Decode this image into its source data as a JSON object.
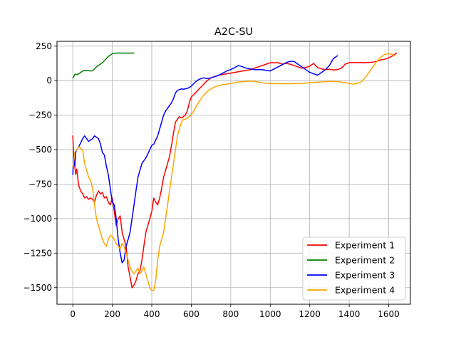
{
  "chart_data": {
    "type": "line",
    "title": "A2C-SU",
    "xlabel": "",
    "ylabel": "",
    "xlim": [
      -80,
      1710
    ],
    "ylim": [
      -1620,
      285
    ],
    "xticks": [
      0,
      200,
      400,
      600,
      800,
      1000,
      1200,
      1400,
      1600
    ],
    "yticks": [
      250,
      0,
      -250,
      -500,
      -750,
      -1000,
      -1250,
      -1500
    ],
    "ytick_labels": [
      "250",
      "0",
      "−250",
      "−500",
      "−750",
      "−1000",
      "−1250",
      "−1500"
    ],
    "grid": true,
    "legend_position": "lower-right",
    "series": [
      {
        "name": "Experiment 1",
        "color": "#ff0000",
        "x": [
          0,
          5,
          10,
          15,
          20,
          25,
          30,
          40,
          50,
          60,
          70,
          80,
          90,
          100,
          110,
          120,
          130,
          140,
          150,
          160,
          170,
          180,
          190,
          200,
          210,
          220,
          230,
          240,
          250,
          260,
          270,
          280,
          290,
          300,
          310,
          320,
          330,
          340,
          350,
          360,
          370,
          380,
          390,
          400,
          410,
          420,
          430,
          440,
          450,
          460,
          470,
          480,
          490,
          500,
          510,
          520,
          530,
          540,
          550,
          560,
          570,
          580,
          590,
          600,
          620,
          640,
          660,
          680,
          700,
          720,
          740,
          760,
          780,
          800,
          820,
          840,
          860,
          880,
          900,
          920,
          940,
          960,
          980,
          1000,
          1020,
          1040,
          1060,
          1080,
          1100,
          1120,
          1140,
          1160,
          1180,
          1200,
          1220,
          1240,
          1260,
          1280,
          1300,
          1320,
          1340,
          1360,
          1380,
          1400,
          1420,
          1440,
          1460,
          1480,
          1500,
          1520,
          1540,
          1560,
          1580,
          1600,
          1620,
          1640
        ],
        "y": [
          -400,
          -560,
          -620,
          -680,
          -640,
          -700,
          -760,
          -800,
          -820,
          -850,
          -840,
          -860,
          -850,
          -860,
          -880,
          -830,
          -800,
          -820,
          -810,
          -850,
          -840,
          -880,
          -900,
          -850,
          -950,
          -1050,
          -1000,
          -980,
          -1100,
          -1150,
          -1200,
          -1350,
          -1420,
          -1500,
          -1480,
          -1450,
          -1400,
          -1380,
          -1300,
          -1200,
          -1100,
          -1050,
          -1000,
          -950,
          -850,
          -880,
          -900,
          -850,
          -780,
          -700,
          -650,
          -600,
          -550,
          -470,
          -380,
          -300,
          -280,
          -260,
          -270,
          -260,
          -250,
          -220,
          -160,
          -120,
          -90,
          -60,
          -30,
          0,
          20,
          30,
          40,
          45,
          50,
          55,
          60,
          65,
          70,
          75,
          80,
          90,
          100,
          110,
          120,
          130,
          130,
          130,
          120,
          125,
          120,
          110,
          100,
          90,
          95,
          105,
          125,
          95,
          85,
          80,
          82,
          78,
          80,
          90,
          120,
          130,
          132,
          130,
          131,
          130,
          132,
          134,
          140,
          150,
          155,
          165,
          180,
          200
        ],
        "values": [
          -400,
          -560,
          -620,
          -680,
          -640,
          -700,
          -760,
          -800,
          -820,
          -850,
          -840,
          -860,
          -850,
          -860,
          -880,
          -830,
          -800,
          -820,
          -810,
          -850,
          -840,
          -880,
          -900,
          -850,
          -950,
          -1050,
          -1000,
          -980,
          -1100,
          -1150,
          -1200,
          -1350,
          -1420,
          -1500,
          -1480,
          -1450,
          -1400,
          -1380,
          -1300,
          -1200,
          -1100,
          -1050,
          -1000,
          -950,
          -850,
          -880,
          -900,
          -850,
          -780,
          -700,
          -650,
          -600,
          -550,
          -470,
          -380,
          -300,
          -280,
          -260,
          -270,
          -260,
          -250,
          -220,
          -160,
          -120,
          -90,
          -60,
          -30,
          0,
          20,
          30,
          40,
          45,
          50,
          55,
          60,
          65,
          70,
          75,
          80,
          90,
          100,
          110,
          120,
          130,
          130,
          130,
          120,
          125,
          120,
          110,
          100,
          90,
          95,
          105,
          125,
          95,
          85,
          80,
          82,
          78,
          80,
          90,
          120,
          130,
          132,
          130,
          131,
          130,
          132,
          134,
          140,
          150,
          155,
          165,
          180,
          200
        ]
      },
      {
        "name": "Experiment 2",
        "color": "#008000",
        "x": [
          0,
          5,
          10,
          20,
          30,
          40,
          50,
          60,
          70,
          80,
          90,
          100,
          110,
          120,
          130,
          140,
          150,
          160,
          170,
          180,
          190,
          200,
          210,
          220,
          240,
          260,
          280,
          300,
          310
        ],
        "y": [
          20,
          30,
          45,
          45,
          50,
          60,
          70,
          75,
          75,
          72,
          70,
          72,
          85,
          100,
          110,
          120,
          130,
          145,
          160,
          175,
          185,
          195,
          198,
          200,
          200,
          200,
          200,
          200,
          200
        ],
        "values": [
          20,
          30,
          45,
          45,
          50,
          60,
          70,
          75,
          75,
          72,
          70,
          72,
          85,
          100,
          110,
          120,
          130,
          145,
          160,
          175,
          185,
          195,
          198,
          200,
          200,
          200,
          200,
          200,
          200
        ]
      },
      {
        "name": "Experiment 3",
        "color": "#0000ff",
        "x": [
          0,
          5,
          10,
          15,
          20,
          30,
          40,
          50,
          60,
          70,
          80,
          90,
          100,
          110,
          120,
          130,
          140,
          150,
          160,
          170,
          180,
          190,
          200,
          210,
          220,
          230,
          240,
          250,
          260,
          270,
          280,
          290,
          300,
          310,
          320,
          330,
          340,
          350,
          360,
          370,
          380,
          390,
          400,
          410,
          420,
          430,
          440,
          450,
          460,
          470,
          480,
          490,
          500,
          510,
          520,
          530,
          540,
          550,
          560,
          570,
          580,
          590,
          600,
          620,
          640,
          660,
          680,
          700,
          720,
          740,
          760,
          780,
          800,
          820,
          840,
          860,
          880,
          900,
          920,
          940,
          960,
          980,
          1000,
          1020,
          1040,
          1060,
          1080,
          1100,
          1120,
          1140,
          1160,
          1180,
          1200,
          1220,
          1240,
          1260,
          1280,
          1300,
          1320,
          1340
        ],
        "y": [
          -680,
          -540,
          -620,
          -520,
          -500,
          -480,
          -450,
          -420,
          -400,
          -420,
          -440,
          -430,
          -420,
          -400,
          -410,
          -420,
          -460,
          -520,
          -540,
          -620,
          -680,
          -780,
          -880,
          -900,
          -1000,
          -1150,
          -1250,
          -1320,
          -1300,
          -1200,
          -1150,
          -1100,
          -1000,
          -900,
          -800,
          -700,
          -650,
          -600,
          -580,
          -560,
          -530,
          -500,
          -470,
          -460,
          -430,
          -400,
          -350,
          -300,
          -250,
          -220,
          -200,
          -180,
          -160,
          -130,
          -90,
          -70,
          -65,
          -60,
          -62,
          -60,
          -55,
          -50,
          -40,
          -10,
          10,
          20,
          15,
          20,
          30,
          40,
          55,
          70,
          80,
          95,
          110,
          100,
          90,
          85,
          80,
          80,
          80,
          75,
          70,
          85,
          100,
          115,
          130,
          140,
          140,
          120,
          100,
          80,
          60,
          50,
          40,
          60,
          80,
          110,
          160,
          180
        ],
        "values": [
          -680,
          -540,
          -620,
          -520,
          -500,
          -480,
          -450,
          -420,
          -400,
          -420,
          -440,
          -430,
          -420,
          -400,
          -410,
          -420,
          -460,
          -520,
          -540,
          -620,
          -680,
          -780,
          -880,
          -900,
          -1000,
          -1150,
          -1250,
          -1320,
          -1300,
          -1200,
          -1150,
          -1100,
          -1000,
          -900,
          -800,
          -700,
          -650,
          -600,
          -580,
          -560,
          -530,
          -500,
          -470,
          -460,
          -430,
          -400,
          -350,
          -300,
          -250,
          -220,
          -200,
          -180,
          -160,
          -130,
          -90,
          -70,
          -65,
          -60,
          -62,
          -60,
          -55,
          -50,
          -40,
          -10,
          10,
          20,
          15,
          20,
          30,
          40,
          55,
          70,
          80,
          95,
          110,
          100,
          90,
          85,
          80,
          80,
          80,
          75,
          70,
          85,
          100,
          115,
          130,
          140,
          140,
          120,
          100,
          80,
          60,
          50,
          40,
          60,
          80,
          110,
          160,
          180
        ]
      },
      {
        "name": "Experiment 4",
        "color": "#ffa500",
        "x": [
          0,
          5,
          10,
          20,
          30,
          40,
          50,
          60,
          70,
          80,
          90,
          100,
          110,
          120,
          130,
          140,
          150,
          160,
          170,
          180,
          190,
          200,
          210,
          220,
          230,
          240,
          250,
          260,
          270,
          280,
          290,
          300,
          310,
          320,
          330,
          340,
          350,
          360,
          370,
          380,
          390,
          400,
          410,
          420,
          430,
          440,
          450,
          460,
          470,
          480,
          490,
          500,
          510,
          520,
          530,
          540,
          550,
          560,
          570,
          580,
          590,
          600,
          620,
          640,
          660,
          680,
          700,
          720,
          740,
          760,
          780,
          800,
          820,
          840,
          860,
          880,
          900,
          920,
          940,
          960,
          980,
          1000,
          1050,
          1100,
          1150,
          1200,
          1250,
          1300,
          1350,
          1400,
          1420,
          1440,
          1460,
          1480,
          1500,
          1520,
          1540,
          1560,
          1580,
          1600,
          1620,
          1630
        ],
        "y": [
          -620,
          -580,
          -520,
          -500,
          -480,
          -490,
          -500,
          -600,
          -650,
          -700,
          -720,
          -780,
          -900,
          -1000,
          -1050,
          -1100,
          -1150,
          -1180,
          -1200,
          -1150,
          -1120,
          -1130,
          -1150,
          -1180,
          -1200,
          -1220,
          -1180,
          -1200,
          -1250,
          -1300,
          -1350,
          -1380,
          -1400,
          -1380,
          -1360,
          -1400,
          -1380,
          -1350,
          -1400,
          -1450,
          -1500,
          -1520,
          -1520,
          -1450,
          -1300,
          -1200,
          -1150,
          -1100,
          -1000,
          -900,
          -800,
          -700,
          -600,
          -500,
          -400,
          -350,
          -300,
          -280,
          -280,
          -270,
          -260,
          -250,
          -200,
          -150,
          -110,
          -80,
          -60,
          -45,
          -35,
          -30,
          -25,
          -20,
          -15,
          -10,
          -8,
          -5,
          -3,
          -5,
          -10,
          -15,
          -18,
          -20,
          -22,
          -22,
          -20,
          -15,
          -10,
          -5,
          -8,
          -20,
          -25,
          -20,
          -10,
          20,
          60,
          100,
          140,
          170,
          190,
          195,
          190,
          180
        ],
        "values": [
          -620,
          -580,
          -520,
          -500,
          -480,
          -490,
          -500,
          -600,
          -650,
          -700,
          -720,
          -780,
          -900,
          -1000,
          -1050,
          -1100,
          -1150,
          -1180,
          -1200,
          -1150,
          -1120,
          -1130,
          -1150,
          -1180,
          -1200,
          -1220,
          -1180,
          -1200,
          -1250,
          -1300,
          -1350,
          -1380,
          -1400,
          -1380,
          -1360,
          -1400,
          -1380,
          -1350,
          -1400,
          -1450,
          -1500,
          -1520,
          -1520,
          -1450,
          -1300,
          -1200,
          -1150,
          -1100,
          -1000,
          -900,
          -800,
          -700,
          -600,
          -500,
          -400,
          -350,
          -300,
          -280,
          -280,
          -270,
          -260,
          -250,
          -200,
          -150,
          -110,
          -80,
          -60,
          -45,
          -35,
          -30,
          -25,
          -20,
          -15,
          -10,
          -8,
          -5,
          -3,
          -5,
          -10,
          -15,
          -18,
          -20,
          -22,
          -22,
          -20,
          -15,
          -10,
          -5,
          -8,
          -20,
          -25,
          -20,
          -10,
          20,
          60,
          100,
          140,
          170,
          190,
          195,
          190,
          180
        ]
      }
    ]
  }
}
